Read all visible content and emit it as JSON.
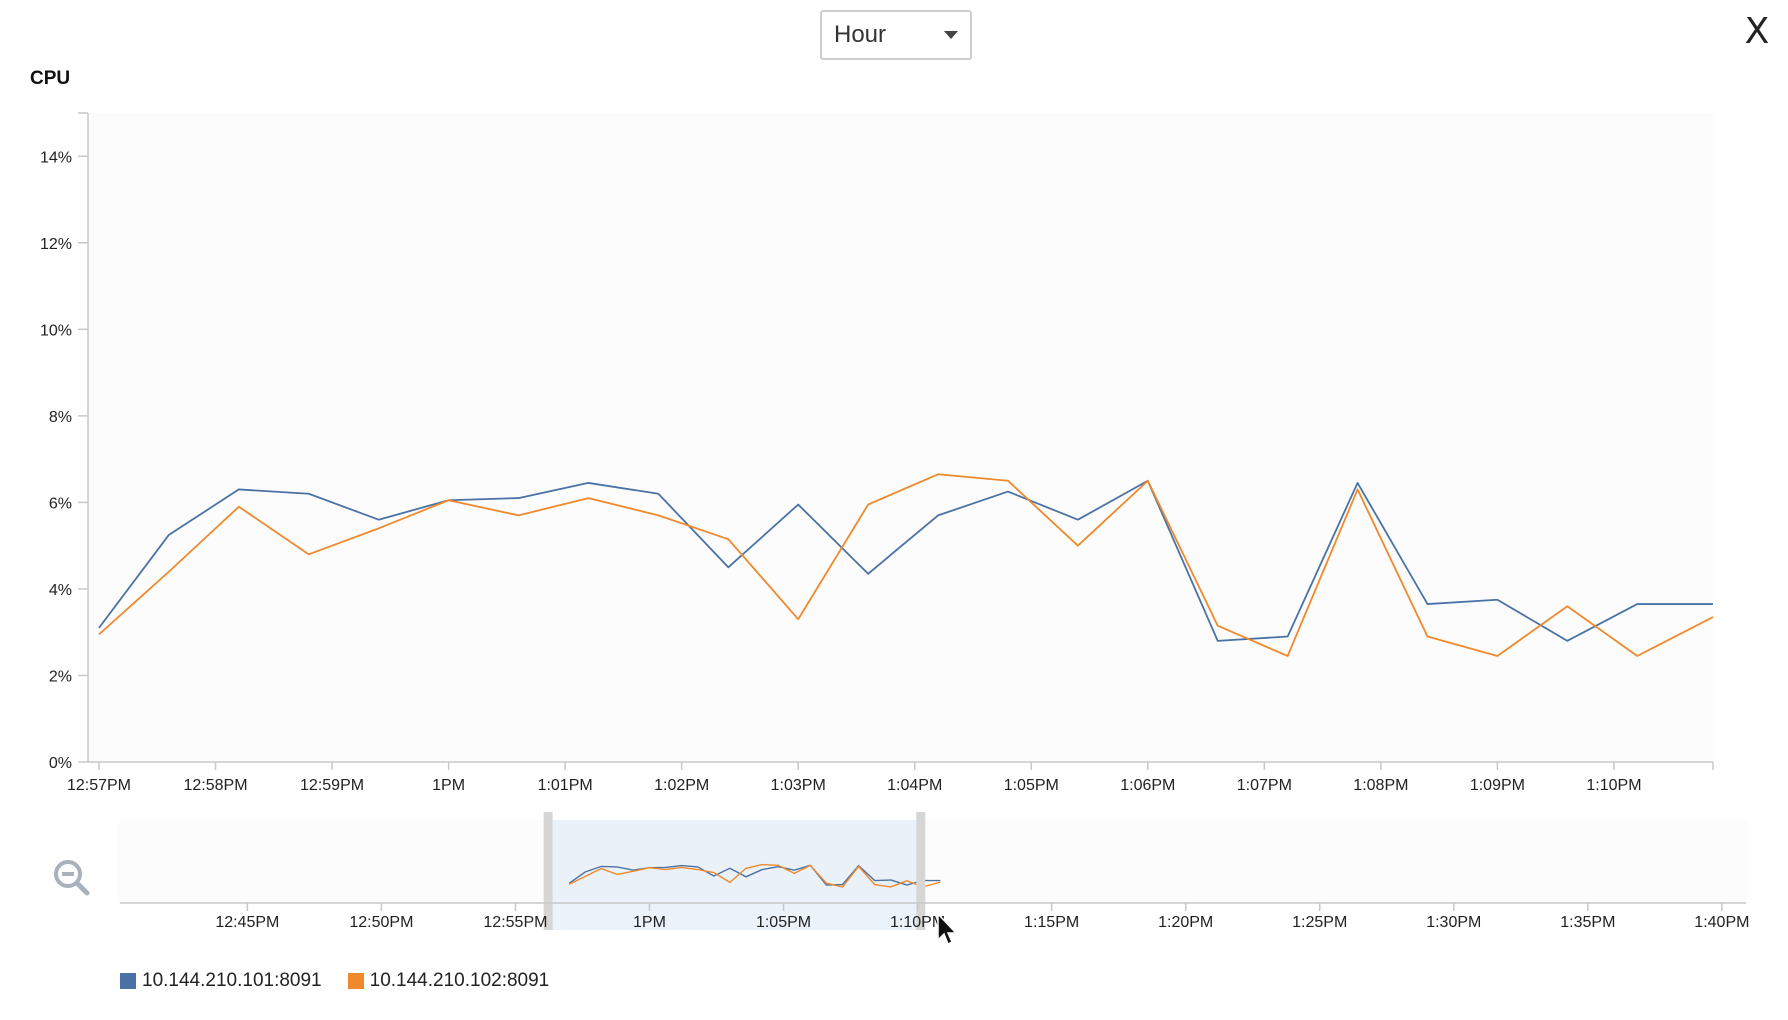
{
  "toolbar": {
    "range_label": "Hour",
    "close_label": "X"
  },
  "chart_data": {
    "type": "line",
    "title": "CPU",
    "ylim": [
      0,
      15
    ],
    "yticks": [
      0,
      2,
      4,
      6,
      8,
      10,
      12,
      14
    ],
    "ytick_labels": [
      "0%",
      "2%",
      "4%",
      "6%",
      "8%",
      "10%",
      "12%",
      "14%"
    ],
    "xlim": [
      0,
      13.85
    ],
    "xticks": [
      0,
      1,
      2,
      3,
      4,
      5,
      6,
      7,
      8,
      9,
      10,
      11,
      12,
      13
    ],
    "xtick_labels": [
      "12:57PM",
      "12:58PM",
      "12:59PM",
      "1PM",
      "1:01PM",
      "1:02PM",
      "1:03PM",
      "1:04PM",
      "1:05PM",
      "1:06PM",
      "1:07PM",
      "1:08PM",
      "1:09PM",
      "1:10PM"
    ],
    "x": [
      0,
      0.6,
      1.2,
      1.8,
      2.4,
      3.0,
      3.6,
      4.2,
      4.8,
      5.4,
      6.0,
      6.6,
      7.2,
      7.8,
      8.4,
      9.0,
      9.6,
      10.2,
      10.8,
      11.4,
      12.0,
      12.6,
      13.2,
      13.85
    ],
    "series": [
      {
        "name": "10.144.210.101:8091",
        "color": "#4a72a5",
        "values": [
          3.1,
          5.25,
          6.3,
          6.2,
          5.6,
          6.05,
          6.1,
          6.45,
          6.2,
          4.5,
          5.95,
          4.35,
          5.7,
          6.25,
          5.6,
          6.5,
          2.8,
          2.9,
          6.45,
          3.65,
          3.75,
          2.8,
          3.65,
          3.65
        ]
      },
      {
        "name": "10.144.210.102:8091",
        "color": "#f0892b",
        "values": [
          2.95,
          4.4,
          5.9,
          4.8,
          5.4,
          6.05,
          5.7,
          6.1,
          5.7,
          5.15,
          3.3,
          5.95,
          6.65,
          6.5,
          5.0,
          6.5,
          3.15,
          2.45,
          6.3,
          2.9,
          2.45,
          3.6,
          2.45,
          3.35
        ]
      }
    ],
    "grid": false,
    "legend": "bottom-left"
  },
  "navigator": {
    "xtick_labels": [
      "12:45PM",
      "12:50PM",
      "12:55PM",
      "1PM",
      "1:05PM",
      "1:10PM",
      "1:15PM",
      "1:20PM",
      "1:25PM",
      "1:30PM",
      "1:35PM",
      "1:40PM"
    ],
    "xtick_minutes": [
      45,
      50,
      55,
      60,
      65,
      70,
      75,
      80,
      85,
      90,
      95,
      100
    ],
    "xlim_minutes": [
      40.25,
      100.9
    ],
    "selection_minutes": [
      56.2,
      70.1
    ],
    "ylim": [
      0,
      15
    ]
  },
  "legend": {
    "items": [
      {
        "label": "10.144.210.101:8091",
        "color": "#4a72a5"
      },
      {
        "label": "10.144.210.102:8091",
        "color": "#f0892b"
      }
    ]
  },
  "icons": {
    "zoom_out": "zoom-out-icon",
    "dropdown": "chevron-down-icon",
    "cursor": "mouse-pointer-icon"
  }
}
